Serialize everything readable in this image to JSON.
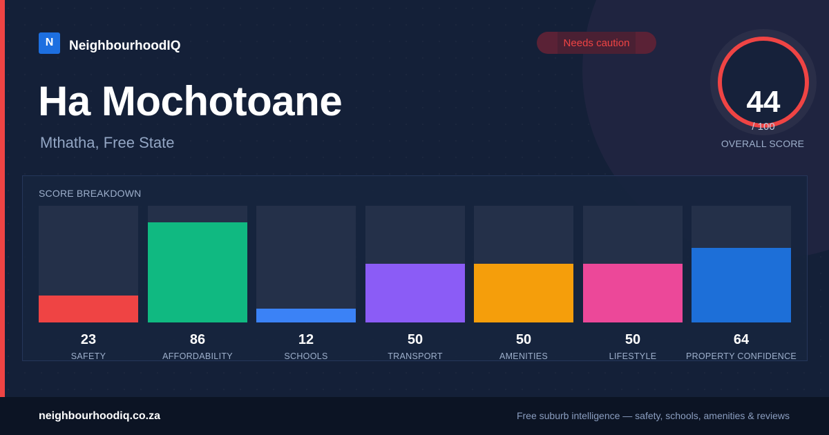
{
  "brand": {
    "logo_letter": "N",
    "name": "NeighbourhoodIQ"
  },
  "suburb": {
    "name": "Ha Mochotoane",
    "location": "Mthatha, Free State"
  },
  "status_badge": {
    "label": "Needs caution",
    "color": "#ef4444"
  },
  "overall_score": {
    "value": "44",
    "max_label": "/ 100",
    "fraction": 0.44,
    "caption": "OVERALL SCORE",
    "color": "#ef4444"
  },
  "breakdown": {
    "title": "SCORE BREAKDOWN",
    "max": 100,
    "categories": [
      {
        "value": "23",
        "label": "SAFETY",
        "score": 23,
        "color": "#ef4444"
      },
      {
        "value": "86",
        "label": "AFFORDABILITY",
        "score": 86,
        "color": "#10b981"
      },
      {
        "value": "12",
        "label": "SCHOOLS",
        "score": 12,
        "color": "#3b82f6"
      },
      {
        "value": "50",
        "label": "TRANSPORT",
        "score": 50,
        "color": "#8b5cf6"
      },
      {
        "value": "50",
        "label": "AMENITIES",
        "score": 50,
        "color": "#f59e0b"
      },
      {
        "value": "50",
        "label": "LIFESTYLE",
        "score": 50,
        "color": "#ec4899"
      },
      {
        "value": "64",
        "label": "PROPERTY CONFIDENCE",
        "score": 64,
        "color": "#1d6fd8"
      }
    ]
  },
  "footer": {
    "site": "neighbourhoodiq.co.za",
    "tagline": "Free suburb intelligence — safety, schools, amenities & reviews"
  }
}
